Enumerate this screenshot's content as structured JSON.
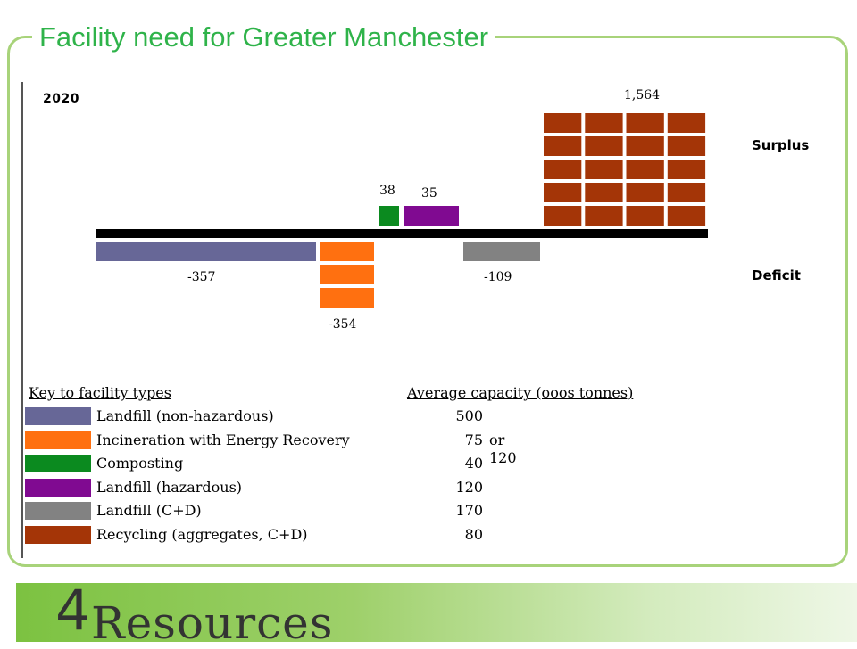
{
  "slide": {
    "title": "Facility need for Greater Manchester",
    "brand_colors": {
      "title_green": "#2fb34a",
      "frame_green": "#a8d37a",
      "footer_green": "#7cc241"
    }
  },
  "chart_data": {
    "type": "bar",
    "year": "2020",
    "surplus_label": "Surplus",
    "deficit_label": "Deficit",
    "value_unit": "000s tonnes",
    "bars": [
      {
        "facility": "Landfill (non-hazardous)",
        "value": -357,
        "label": "-357",
        "blocks": 1,
        "color": "#676797"
      },
      {
        "facility": "Incineration with Energy Recovery",
        "value": -354,
        "label": "-354",
        "blocks": 3,
        "color": "#ff7010"
      },
      {
        "facility": "Composting",
        "value": 38,
        "label": "38",
        "blocks": 1,
        "color": "#0b8a1f"
      },
      {
        "facility": "Landfill (hazardous)",
        "value": 35,
        "label": "35",
        "blocks": 1,
        "color": "#800a91"
      },
      {
        "facility": "Landfill (C+D)",
        "value": -109,
        "label": "-109",
        "blocks": 1,
        "color": "#828282"
      },
      {
        "facility": "Recycling (aggregates, C+D)",
        "value": 1564,
        "label": "1,564",
        "blocks": 20,
        "color": "#a43507"
      }
    ],
    "key": {
      "heading": "Key to facility types",
      "capacity_heading": "Average capacity (ooos tonnes)",
      "items": [
        {
          "name": "Landfill (non-hazardous)",
          "capacity": "500",
          "alt": "",
          "color": "#676797"
        },
        {
          "name": "Incineration with Energy Recovery",
          "capacity": "75",
          "alt": "or 120",
          "color": "#ff7010"
        },
        {
          "name": "Composting",
          "capacity": "40",
          "alt": "",
          "color": "#0b8a1f"
        },
        {
          "name": "Landfill (hazardous)",
          "capacity": "120",
          "alt": "",
          "color": "#800a91"
        },
        {
          "name": "Landfill (C+D)",
          "capacity": "170",
          "alt": "",
          "color": "#828282"
        },
        {
          "name": "Recycling (aggregates, C+D)",
          "capacity": "80",
          "alt": "",
          "color": "#a43507"
        }
      ]
    }
  },
  "footer": {
    "logo_numeral": "4",
    "logo_text": "Resources"
  }
}
